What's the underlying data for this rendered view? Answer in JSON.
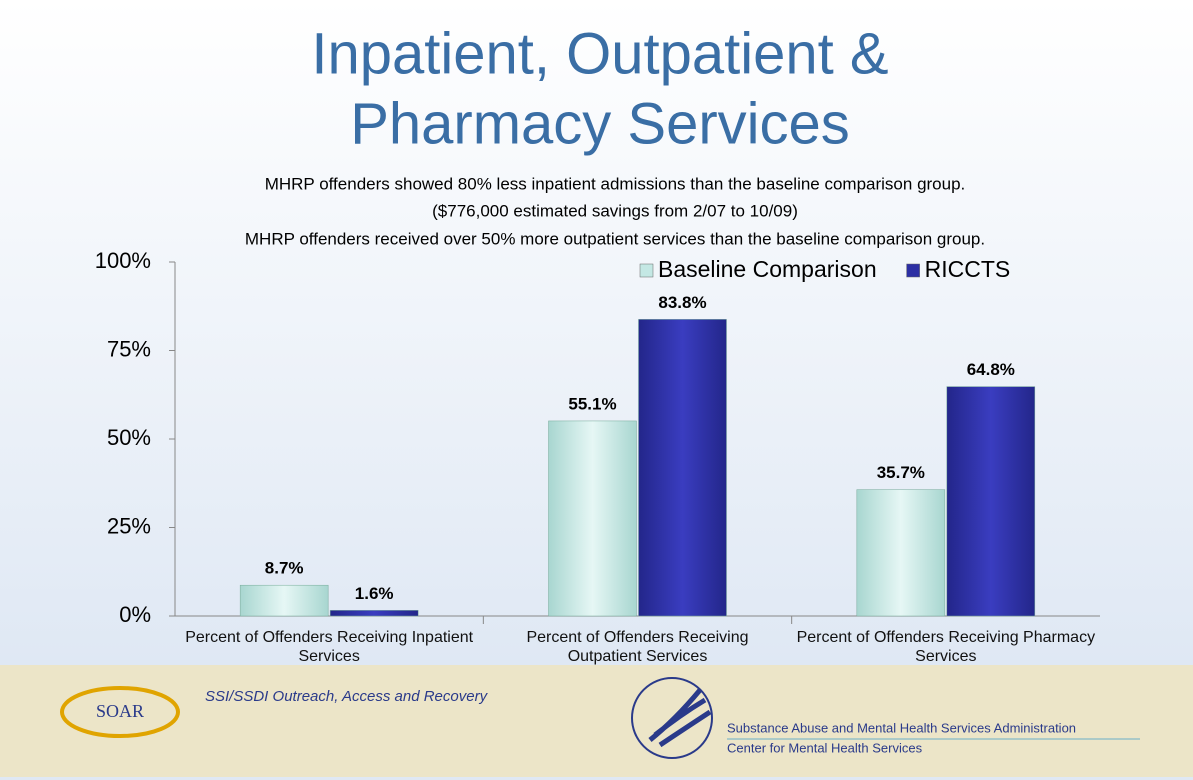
{
  "chart_data": {
    "type": "bar",
    "title": "Inpatient, Outpatient & Pharmacy Services",
    "subtitle": [
      "MHRP offenders showed 80% less inpatient admissions than the baseline comparison group.",
      "($776,000 estimated savings from 2/07 to 10/09)",
      "MHRP offenders received over 50% more outpatient services than the baseline comparison group."
    ],
    "categories": [
      "Percent of Offenders Receiving Inpatient Services",
      "Percent of Offenders Receiving Outpatient Services",
      "Percent of Offenders Receiving Pharmacy Services"
    ],
    "series": [
      {
        "name": "Baseline Comparison",
        "color": "#c4e8e4",
        "values": [
          8.7,
          55.1,
          35.7
        ],
        "value_labels": [
          "8.7%",
          "55.1%",
          "35.7%"
        ]
      },
      {
        "name": "RICCTS",
        "color": "#2c2fa3",
        "values": [
          1.6,
          83.8,
          64.8
        ],
        "value_labels": [
          "1.6%",
          "83.8%",
          "64.8%"
        ]
      }
    ],
    "ylim": [
      0,
      100
    ],
    "yticks": [
      {
        "value": 0,
        "label": "0%"
      },
      {
        "value": 25,
        "label": "25%"
      },
      {
        "value": 50,
        "label": "50%"
      },
      {
        "value": 75,
        "label": "75%"
      },
      {
        "value": 100,
        "label": "100%"
      }
    ],
    "legend": "top-right"
  },
  "footer": {
    "program": "SSI/SSDI Outreach, Access and Recovery",
    "logo": "SOAR",
    "agency": "Substance Abuse and Mental Health Services Administration",
    "center": "Center for Mental Health Services"
  }
}
